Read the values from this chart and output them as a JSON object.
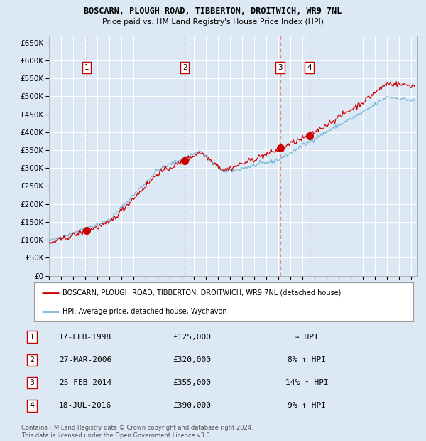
{
  "title": "BOSCARN, PLOUGH ROAD, TIBBERTON, DROITWICH, WR9 7NL",
  "subtitle": "Price paid vs. HM Land Registry's House Price Index (HPI)",
  "background_color": "#dce9f5",
  "plot_bg_color": "#dce9f5",
  "grid_color": "#ffffff",
  "ylim": [
    0,
    670000
  ],
  "yticks": [
    0,
    50000,
    100000,
    150000,
    200000,
    250000,
    300000,
    350000,
    400000,
    450000,
    500000,
    550000,
    600000,
    650000
  ],
  "ytick_labels": [
    "£0",
    "£50K",
    "£100K",
    "£150K",
    "£200K",
    "£250K",
    "£300K",
    "£350K",
    "£400K",
    "£450K",
    "£500K",
    "£550K",
    "£600K",
    "£650K"
  ],
  "xlim_start": 1995.0,
  "xlim_end": 2025.5,
  "price_paid": [
    {
      "year": 1998.12,
      "price": 125000,
      "label": "1"
    },
    {
      "year": 2006.23,
      "price": 320000,
      "label": "2"
    },
    {
      "year": 2014.14,
      "price": 355000,
      "label": "3"
    },
    {
      "year": 2016.54,
      "price": 390000,
      "label": "4"
    }
  ],
  "sale_vlines": [
    1998.12,
    2006.23,
    2014.14,
    2016.54
  ],
  "legend_price_label": "BOSCARN, PLOUGH ROAD, TIBBERTON, DROITWICH, WR9 7NL (detached house)",
  "legend_hpi_label": "HPI: Average price, detached house, Wychavon",
  "table_rows": [
    {
      "num": "1",
      "date": "17-FEB-1998",
      "price": "£125,000",
      "vs_hpi": "≈ HPI"
    },
    {
      "num": "2",
      "date": "27-MAR-2006",
      "price": "£320,000",
      "vs_hpi": "8% ↑ HPI"
    },
    {
      "num": "3",
      "date": "25-FEB-2014",
      "price": "£355,000",
      "vs_hpi": "14% ↑ HPI"
    },
    {
      "num": "4",
      "date": "18-JUL-2016",
      "price": "£390,000",
      "vs_hpi": "9% ↑ HPI"
    }
  ],
  "footer": "Contains HM Land Registry data © Crown copyright and database right 2024.\nThis data is licensed under the Open Government Licence v3.0.",
  "hpi_line_color": "#7ab8d9",
  "price_line_color": "#cc0000",
  "sale_dot_color": "#cc0000",
  "vline_color": "#ee8888",
  "num_box_color": "#cc0000"
}
